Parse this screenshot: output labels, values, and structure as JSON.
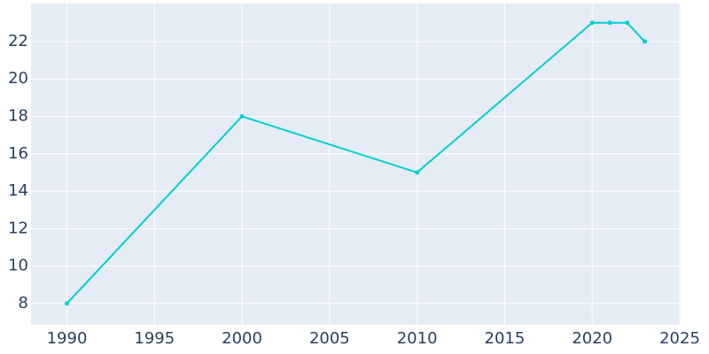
{
  "chart_data": {
    "type": "line",
    "x": [
      1990,
      2000,
      2010,
      2020,
      2021,
      2022,
      2023
    ],
    "series": [
      {
        "color": "#00ced1",
        "values": [
          8,
          18,
          15,
          23,
          23,
          23,
          22
        ]
      }
    ],
    "xlim": [
      1987.95,
      2025.05
    ],
    "xticks": [
      1990,
      1995,
      2000,
      2005,
      2010,
      2015,
      2020,
      2025
    ],
    "ylim": [
      6.86,
      24.03
    ],
    "yticks": [
      8,
      10,
      12,
      14,
      16,
      18,
      20,
      22
    ],
    "grid": true
  }
}
